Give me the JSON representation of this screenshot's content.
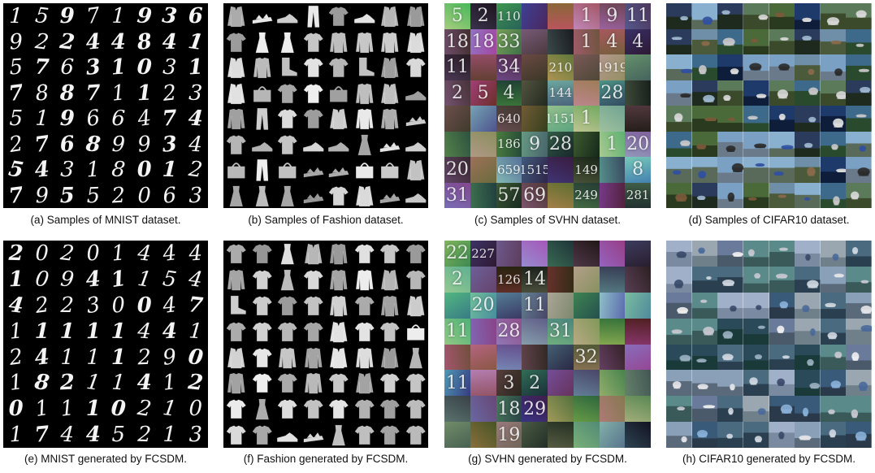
{
  "figure": {
    "captions": {
      "a": "(a) Samples of MNIST dataset.",
      "b": "(b) Samples of Fashion dataset.",
      "c": "(c) Samples of SVHN dataset.",
      "d": "(d) Samples of CIFAR10 dataset.",
      "e": "(e) MNIST generated by FCSDM.",
      "f": "(f) Fashion generated by FCSDM.",
      "g": "(g) SVHN generated by FCSDM.",
      "h": "(h) CIFAR10 generated by FCSDM."
    },
    "mnist_real": [
      [
        "1",
        "5",
        "9",
        "7",
        "1",
        "9",
        "3",
        "6"
      ],
      [
        "9",
        "2",
        "2",
        "4",
        "4",
        "8",
        "4",
        "1"
      ],
      [
        "5",
        "7",
        "6",
        "3",
        "1",
        "0",
        "3",
        "1"
      ],
      [
        "7",
        "8",
        "8",
        "7",
        "1",
        "1",
        "2",
        "3"
      ],
      [
        "5",
        "1",
        "9",
        "6",
        "6",
        "4",
        "7",
        "4"
      ],
      [
        "2",
        "7",
        "6",
        "8",
        "9",
        "9",
        "3",
        "4"
      ],
      [
        "5",
        "4",
        "3",
        "1",
        "8",
        "0",
        "1",
        "2"
      ],
      [
        "7",
        "9",
        "5",
        "5",
        "2",
        "0",
        "6",
        "3"
      ]
    ],
    "mnist_generated": [
      [
        "2",
        "0",
        "2",
        "0",
        "1",
        "4",
        "4",
        "4"
      ],
      [
        "1",
        "0",
        "9",
        "4",
        "1",
        "1",
        "5",
        "4"
      ],
      [
        "4",
        "2",
        "2",
        "3",
        "0",
        "0",
        "4",
        "7"
      ],
      [
        "1",
        "1",
        "1",
        "1",
        "1",
        "4",
        "4",
        "1"
      ],
      [
        "2",
        "4",
        "1",
        "1",
        "1",
        "2",
        "9",
        "0"
      ],
      [
        "1",
        "8",
        "2",
        "1",
        "1",
        "4",
        "1",
        "2"
      ],
      [
        "0",
        "1",
        "1",
        "1",
        "0",
        "2",
        "1",
        "0"
      ],
      [
        "1",
        "7",
        "4",
        "4",
        "5",
        "2",
        "1",
        "3"
      ]
    ],
    "svhn_real": [
      [
        "5",
        "2",
        "110",
        "",
        "",
        "1",
        "9",
        "11"
      ],
      [
        "18",
        "18",
        "33",
        "",
        "",
        "1",
        "4",
        "4"
      ],
      [
        "11",
        "",
        "34",
        "",
        "210",
        "",
        "1919",
        ""
      ],
      [
        "2",
        "5",
        "4",
        "",
        "144",
        "",
        "28",
        ""
      ],
      [
        "",
        "",
        "640",
        "",
        "1151",
        "1",
        "",
        ""
      ],
      [
        "",
        "",
        "186",
        "9",
        "28",
        "",
        "1",
        "20"
      ],
      [
        "20",
        "",
        "659",
        "1515",
        "",
        "149",
        "",
        "8"
      ],
      [
        "31",
        "",
        "57",
        "69",
        "",
        "249",
        "",
        "281"
      ]
    ],
    "svhn_generated": [
      [
        "22",
        "227",
        "",
        "",
        "",
        "",
        "",
        ""
      ],
      [
        "2",
        "",
        "126",
        "14",
        "",
        "",
        "",
        ""
      ],
      [
        "",
        "20",
        "",
        "11",
        "",
        "",
        "",
        ""
      ],
      [
        "11",
        "",
        "28",
        "",
        "31",
        "",
        "",
        ""
      ],
      [
        "",
        "",
        "",
        "",
        "",
        "32",
        "",
        ""
      ],
      [
        "11",
        "",
        "3",
        "2",
        "",
        "",
        "",
        ""
      ],
      [
        "",
        "",
        "18",
        "29",
        "",
        "",
        "",
        ""
      ],
      [
        "",
        "",
        "19",
        "",
        "",
        "",
        "",
        ""
      ]
    ]
  }
}
